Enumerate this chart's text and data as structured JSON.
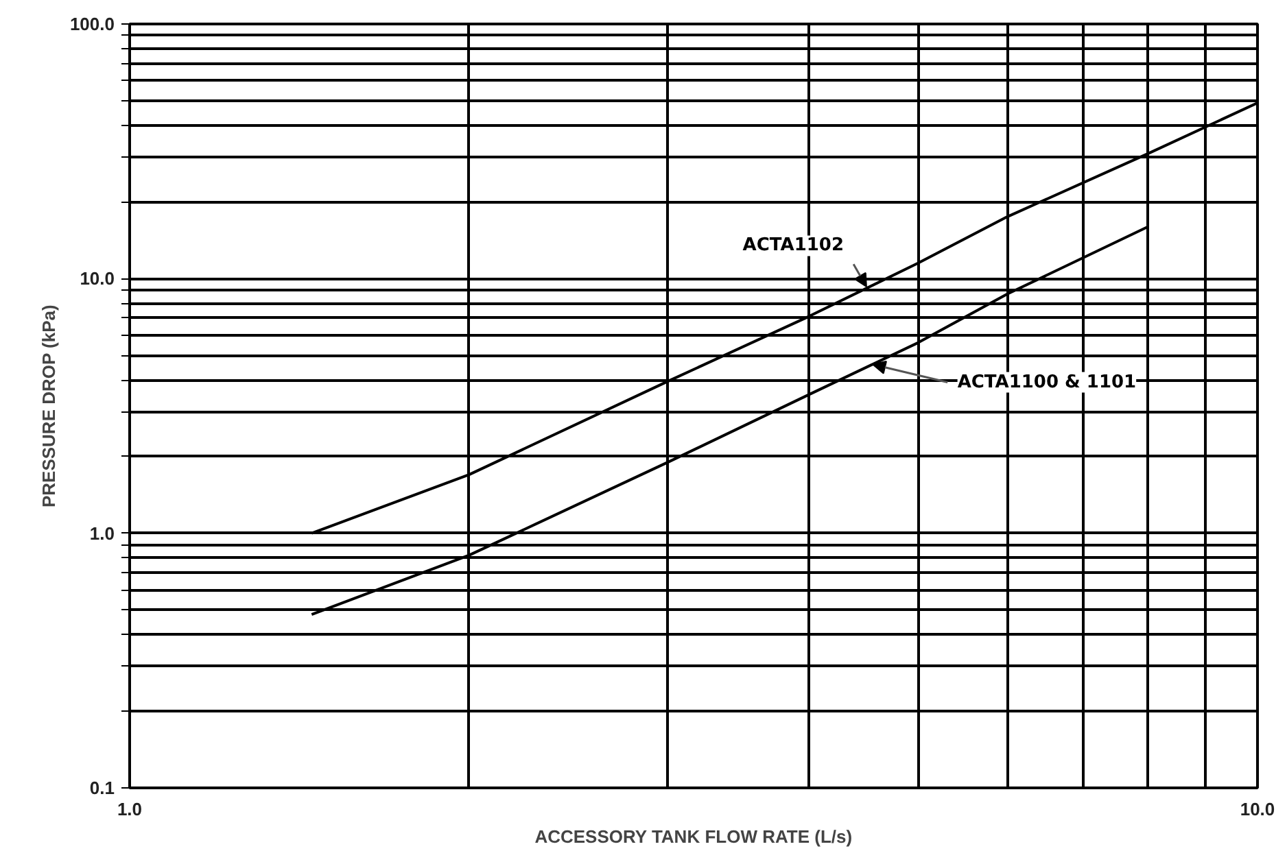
{
  "chart_data": {
    "type": "line",
    "xlabel": "ACCESSORY TANK FLOW RATE (L/s)",
    "ylabel": "PRESSURE DROP (kPa)",
    "log": "xy",
    "xlim": [
      1,
      10
    ],
    "ylim": [
      0.1,
      100
    ],
    "xticks": [
      {
        "value": 1,
        "label": "1.0"
      },
      {
        "value": 2,
        "label": null
      },
      {
        "value": 3,
        "label": null
      },
      {
        "value": 4,
        "label": null
      },
      {
        "value": 5,
        "label": null
      },
      {
        "value": 6,
        "label": null
      },
      {
        "value": 7,
        "label": null
      },
      {
        "value": 8,
        "label": null
      },
      {
        "value": 9,
        "label": null
      },
      {
        "value": 10,
        "label": "10.0"
      }
    ],
    "yticks": [
      {
        "value": 0.1,
        "label": "0.1"
      },
      {
        "value": 0.2,
        "label": null
      },
      {
        "value": 0.3,
        "label": null
      },
      {
        "value": 0.4,
        "label": null
      },
      {
        "value": 0.5,
        "label": null
      },
      {
        "value": 0.6,
        "label": null
      },
      {
        "value": 0.7,
        "label": null
      },
      {
        "value": 0.8,
        "label": null
      },
      {
        "value": 0.9,
        "label": null
      },
      {
        "value": 1,
        "label": "1.0"
      },
      {
        "value": 2,
        "label": null
      },
      {
        "value": 3,
        "label": null
      },
      {
        "value": 4,
        "label": null
      },
      {
        "value": 5,
        "label": null
      },
      {
        "value": 6,
        "label": null
      },
      {
        "value": 7,
        "label": null
      },
      {
        "value": 8,
        "label": null
      },
      {
        "value": 9,
        "label": null
      },
      {
        "value": 10,
        "label": "10.0"
      },
      {
        "value": 20,
        "label": null
      },
      {
        "value": 30,
        "label": null
      },
      {
        "value": 40,
        "label": null
      },
      {
        "value": 50,
        "label": null
      },
      {
        "value": 60,
        "label": null
      },
      {
        "value": 70,
        "label": null
      },
      {
        "value": 80,
        "label": null
      },
      {
        "value": 90,
        "label": null
      },
      {
        "value": 100,
        "label": "100.0"
      }
    ],
    "grid": true,
    "series": [
      {
        "color": "#000000",
        "x": [
          1.45,
          2,
          3,
          4,
          5,
          6,
          8,
          10
        ],
        "values": [
          1.0,
          1.7,
          3.95,
          7.1,
          11.5,
          17.5,
          31,
          49
        ]
      },
      {
        "color": "#000000",
        "x": [
          1.45,
          2,
          3,
          4,
          5,
          6,
          8
        ],
        "values": [
          0.48,
          0.82,
          1.9,
          3.5,
          5.6,
          8.7,
          16
        ]
      }
    ],
    "annotations": [
      {
        "text": "ACTA1102",
        "x": 4.5,
        "y": 9.3
      },
      {
        "text": "ACTA1100 & 1101",
        "x": 4.56,
        "y": 4.6
      }
    ]
  }
}
